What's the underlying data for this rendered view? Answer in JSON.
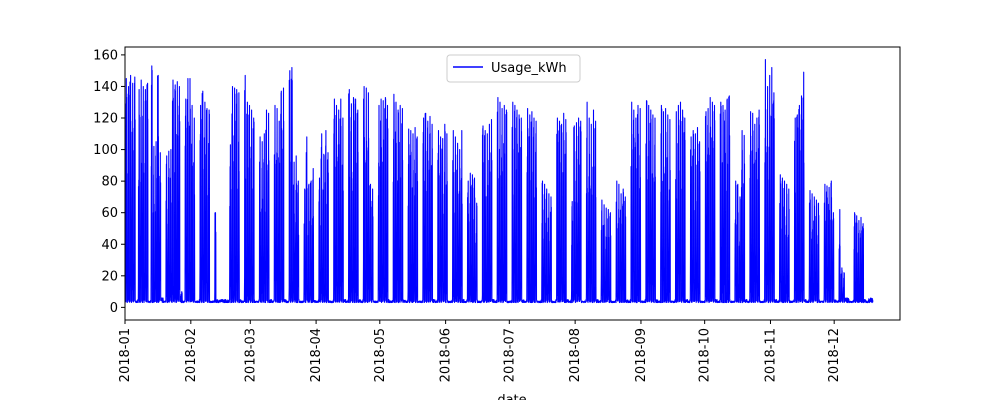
{
  "chart_data": {
    "type": "line",
    "title": "",
    "xlabel": "date",
    "ylabel": "",
    "xlim": [
      "2018-01-01",
      "2018-12-31"
    ],
    "ylim": [
      -8,
      165
    ],
    "xticks": [
      "2018-01",
      "2018-02",
      "2018-03",
      "2018-04",
      "2018-05",
      "2018-06",
      "2018-07",
      "2018-08",
      "2018-09",
      "2018-10",
      "2018-11",
      "2018-12"
    ],
    "yticks": [
      0,
      20,
      40,
      60,
      80,
      100,
      120,
      140,
      160
    ],
    "grid": false,
    "legend": {
      "position": "top-center"
    },
    "series": [
      {
        "name": "Usage_kWh",
        "color": "#0000ff",
        "baseline": 3,
        "x": [
          "2018-01-01",
          "2018-01-02",
          "2018-01-03",
          "2018-01-04",
          "2018-01-05",
          "2018-01-06",
          "2018-01-07",
          "2018-01-08",
          "2018-01-09",
          "2018-01-10",
          "2018-01-11",
          "2018-01-12",
          "2018-01-13",
          "2018-01-14",
          "2018-01-15",
          "2018-01-16",
          "2018-01-17",
          "2018-01-18",
          "2018-01-19",
          "2018-01-20",
          "2018-01-21",
          "2018-01-22",
          "2018-01-23",
          "2018-01-24",
          "2018-01-25",
          "2018-01-26",
          "2018-01-27",
          "2018-01-28",
          "2018-01-29",
          "2018-01-30",
          "2018-01-31",
          "2018-02-01",
          "2018-02-02",
          "2018-02-03",
          "2018-02-04",
          "2018-02-05",
          "2018-02-06",
          "2018-02-07",
          "2018-02-08",
          "2018-02-09",
          "2018-02-10",
          "2018-02-11",
          "2018-02-12",
          "2018-02-13",
          "2018-02-14",
          "2018-02-15",
          "2018-02-16",
          "2018-02-17",
          "2018-02-18",
          "2018-02-19",
          "2018-02-20",
          "2018-02-21",
          "2018-02-22",
          "2018-02-23",
          "2018-02-24",
          "2018-02-25",
          "2018-02-26",
          "2018-02-27",
          "2018-02-28",
          "2018-03-01",
          "2018-03-02",
          "2018-03-03",
          "2018-03-04",
          "2018-03-05",
          "2018-03-06",
          "2018-03-07",
          "2018-03-08",
          "2018-03-09",
          "2018-03-10",
          "2018-03-11",
          "2018-03-12",
          "2018-03-13",
          "2018-03-14",
          "2018-03-15",
          "2018-03-16",
          "2018-03-17",
          "2018-03-18",
          "2018-03-19",
          "2018-03-20",
          "2018-03-21",
          "2018-03-22",
          "2018-03-23",
          "2018-03-24",
          "2018-03-25",
          "2018-03-26",
          "2018-03-27",
          "2018-03-28",
          "2018-03-29",
          "2018-03-30",
          "2018-03-31",
          "2018-04-01",
          "2018-04-02",
          "2018-04-03",
          "2018-04-04",
          "2018-04-05",
          "2018-04-06",
          "2018-04-07",
          "2018-04-08",
          "2018-04-09",
          "2018-04-10",
          "2018-04-11",
          "2018-04-12",
          "2018-04-13",
          "2018-04-14",
          "2018-04-15",
          "2018-04-16",
          "2018-04-17",
          "2018-04-18",
          "2018-04-19",
          "2018-04-20",
          "2018-04-21",
          "2018-04-22",
          "2018-04-23",
          "2018-04-24",
          "2018-04-25",
          "2018-04-26",
          "2018-04-27",
          "2018-04-28",
          "2018-04-29",
          "2018-04-30",
          "2018-05-01",
          "2018-05-02",
          "2018-05-03",
          "2018-05-04",
          "2018-05-05",
          "2018-05-06",
          "2018-05-07",
          "2018-05-08",
          "2018-05-09",
          "2018-05-10",
          "2018-05-11",
          "2018-05-12",
          "2018-05-13",
          "2018-05-14",
          "2018-05-15",
          "2018-05-16",
          "2018-05-17",
          "2018-05-18",
          "2018-05-19",
          "2018-05-20",
          "2018-05-21",
          "2018-05-22",
          "2018-05-23",
          "2018-05-24",
          "2018-05-25",
          "2018-05-26",
          "2018-05-27",
          "2018-05-28",
          "2018-05-29",
          "2018-05-30",
          "2018-05-31",
          "2018-06-01",
          "2018-06-02",
          "2018-06-03",
          "2018-06-04",
          "2018-06-05",
          "2018-06-06",
          "2018-06-07",
          "2018-06-08",
          "2018-06-09",
          "2018-06-10",
          "2018-06-11",
          "2018-06-12",
          "2018-06-13",
          "2018-06-14",
          "2018-06-15",
          "2018-06-16",
          "2018-06-17",
          "2018-06-18",
          "2018-06-19",
          "2018-06-20",
          "2018-06-21",
          "2018-06-22",
          "2018-06-23",
          "2018-06-24",
          "2018-06-25",
          "2018-06-26",
          "2018-06-27",
          "2018-06-28",
          "2018-06-29",
          "2018-06-30",
          "2018-07-01",
          "2018-07-02",
          "2018-07-03",
          "2018-07-04",
          "2018-07-05",
          "2018-07-06",
          "2018-07-07",
          "2018-07-08",
          "2018-07-09",
          "2018-07-10",
          "2018-07-11",
          "2018-07-12",
          "2018-07-13",
          "2018-07-14",
          "2018-07-15",
          "2018-07-16",
          "2018-07-17",
          "2018-07-18",
          "2018-07-19",
          "2018-07-20",
          "2018-07-21",
          "2018-07-22",
          "2018-07-23",
          "2018-07-24",
          "2018-07-25",
          "2018-07-26",
          "2018-07-27",
          "2018-07-28",
          "2018-07-29",
          "2018-07-30",
          "2018-07-31",
          "2018-08-01",
          "2018-08-02",
          "2018-08-03",
          "2018-08-04",
          "2018-08-05",
          "2018-08-06",
          "2018-08-07",
          "2018-08-08",
          "2018-08-09",
          "2018-08-10",
          "2018-08-11",
          "2018-08-12",
          "2018-08-13",
          "2018-08-14",
          "2018-08-15",
          "2018-08-16",
          "2018-08-17",
          "2018-08-18",
          "2018-08-19",
          "2018-08-20",
          "2018-08-21",
          "2018-08-22",
          "2018-08-23",
          "2018-08-24",
          "2018-08-25",
          "2018-08-26",
          "2018-08-27",
          "2018-08-28",
          "2018-08-29",
          "2018-08-30",
          "2018-08-31",
          "2018-09-01",
          "2018-09-02",
          "2018-09-03",
          "2018-09-04",
          "2018-09-05",
          "2018-09-06",
          "2018-09-07",
          "2018-09-08",
          "2018-09-09",
          "2018-09-10",
          "2018-09-11",
          "2018-09-12",
          "2018-09-13",
          "2018-09-14",
          "2018-09-15",
          "2018-09-16",
          "2018-09-17",
          "2018-09-18",
          "2018-09-19",
          "2018-09-20",
          "2018-09-21",
          "2018-09-22",
          "2018-09-23",
          "2018-09-24",
          "2018-09-25",
          "2018-09-26",
          "2018-09-27",
          "2018-09-28",
          "2018-09-29",
          "2018-09-30",
          "2018-10-01",
          "2018-10-02",
          "2018-10-03",
          "2018-10-04",
          "2018-10-05",
          "2018-10-06",
          "2018-10-07",
          "2018-10-08",
          "2018-10-09",
          "2018-10-10",
          "2018-10-11",
          "2018-10-12",
          "2018-10-13",
          "2018-10-14",
          "2018-10-15",
          "2018-10-16",
          "2018-10-17",
          "2018-10-18",
          "2018-10-19",
          "2018-10-20",
          "2018-10-21",
          "2018-10-22",
          "2018-10-23",
          "2018-10-24",
          "2018-10-25",
          "2018-10-26",
          "2018-10-27",
          "2018-10-28",
          "2018-10-29",
          "2018-10-30",
          "2018-10-31",
          "2018-11-01",
          "2018-11-02",
          "2018-11-03",
          "2018-11-04",
          "2018-11-05",
          "2018-11-06",
          "2018-11-07",
          "2018-11-08",
          "2018-11-09",
          "2018-11-10",
          "2018-11-11",
          "2018-11-12",
          "2018-11-13",
          "2018-11-14",
          "2018-11-15",
          "2018-11-16",
          "2018-11-17",
          "2018-11-18",
          "2018-11-19",
          "2018-11-20",
          "2018-11-21",
          "2018-11-22",
          "2018-11-23",
          "2018-11-24",
          "2018-11-25",
          "2018-11-26",
          "2018-11-27",
          "2018-11-28",
          "2018-11-29",
          "2018-11-30",
          "2018-12-01",
          "2018-12-02",
          "2018-12-03",
          "2018-12-04",
          "2018-12-05",
          "2018-12-06",
          "2018-12-07",
          "2018-12-08",
          "2018-12-09",
          "2018-12-10",
          "2018-12-11",
          "2018-12-12",
          "2018-12-13",
          "2018-12-14",
          "2018-12-15",
          "2018-12-16",
          "2018-12-17",
          "2018-12-18",
          "2018-12-19",
          "2018-12-20",
          "2018-12-21",
          "2018-12-22",
          "2018-12-23",
          "2018-12-24",
          "2018-12-25",
          "2018-12-26",
          "2018-12-27",
          "2018-12-28",
          "2018-12-29",
          "2018-12-30",
          "2018-12-31"
        ],
        "daily_max": [
          145,
          140,
          147,
          142,
          146,
          3,
          138,
          144,
          140,
          138,
          142,
          3,
          153,
          102,
          105,
          147,
          98,
          5,
          3,
          96,
          99,
          100,
          144,
          141,
          143,
          140,
          10,
          3,
          132,
          145,
          145,
          128,
          120,
          3,
          3,
          128,
          137,
          130,
          126,
          125,
          3,
          3,
          60,
          4,
          4,
          4,
          4,
          4,
          4,
          103,
          140,
          139,
          138,
          136,
          4,
          3,
          147,
          130,
          128,
          125,
          120,
          3,
          3,
          108,
          105,
          110,
          125,
          123,
          4,
          3,
          128,
          126,
          118,
          137,
          139,
          4,
          3,
          150,
          152,
          92,
          96,
          80,
          3,
          3,
          75,
          108,
          78,
          80,
          88,
          4,
          3,
          82,
          110,
          97,
          112,
          98,
          3,
          3,
          132,
          128,
          125,
          132,
          120,
          4,
          3,
          138,
          129,
          133,
          132,
          125,
          4,
          3,
          140,
          139,
          136,
          78,
          75,
          3,
          3,
          128,
          132,
          131,
          133,
          128,
          4,
          3,
          135,
          130,
          125,
          128,
          126,
          4,
          3,
          113,
          112,
          110,
          114,
          108,
          3,
          3,
          120,
          123,
          118,
          121,
          116,
          4,
          3,
          112,
          108,
          107,
          116,
          110,
          3,
          3,
          112,
          108,
          104,
          100,
          112,
          4,
          3,
          80,
          85,
          84,
          82,
          66,
          3,
          3,
          115,
          112,
          110,
          116,
          119,
          4,
          3,
          133,
          130,
          126,
          128,
          125,
          3,
          3,
          130,
          128,
          125,
          122,
          120,
          4,
          3,
          126,
          122,
          124,
          120,
          118,
          3,
          3,
          80,
          78,
          75,
          72,
          70,
          3,
          3,
          120,
          118,
          116,
          123,
          119,
          4,
          3,
          67,
          115,
          117,
          120,
          118,
          3,
          3,
          130,
          120,
          116,
          125,
          118,
          4,
          3,
          68,
          65,
          63,
          62,
          60,
          3,
          3,
          80,
          78,
          72,
          75,
          70,
          4,
          3,
          130,
          125,
          120,
          128,
          126,
          3,
          3,
          131,
          128,
          125,
          122,
          120,
          4,
          3,
          128,
          124,
          126,
          122,
          119,
          3,
          3,
          124,
          128,
          130,
          125,
          120,
          4,
          3,
          108,
          112,
          110,
          114,
          105,
          3,
          3,
          124,
          126,
          133,
          130,
          128,
          4,
          3,
          130,
          128,
          125,
          132,
          134,
          3,
          3,
          80,
          78,
          70,
          112,
          109,
          4,
          3,
          124,
          123,
          116,
          120,
          125,
          3,
          3,
          157,
          140,
          147,
          152,
          136,
          4,
          3,
          84,
          82,
          80,
          78,
          75,
          3,
          3,
          120,
          122,
          128,
          134,
          149,
          4,
          3,
          74,
          72,
          70,
          68,
          66,
          3,
          3,
          78,
          77,
          76,
          80,
          60,
          4,
          3,
          62,
          25,
          22,
          5,
          5,
          3,
          3,
          60,
          58,
          55,
          57,
          53,
          4,
          3,
          5,
          5
        ]
      }
    ]
  }
}
